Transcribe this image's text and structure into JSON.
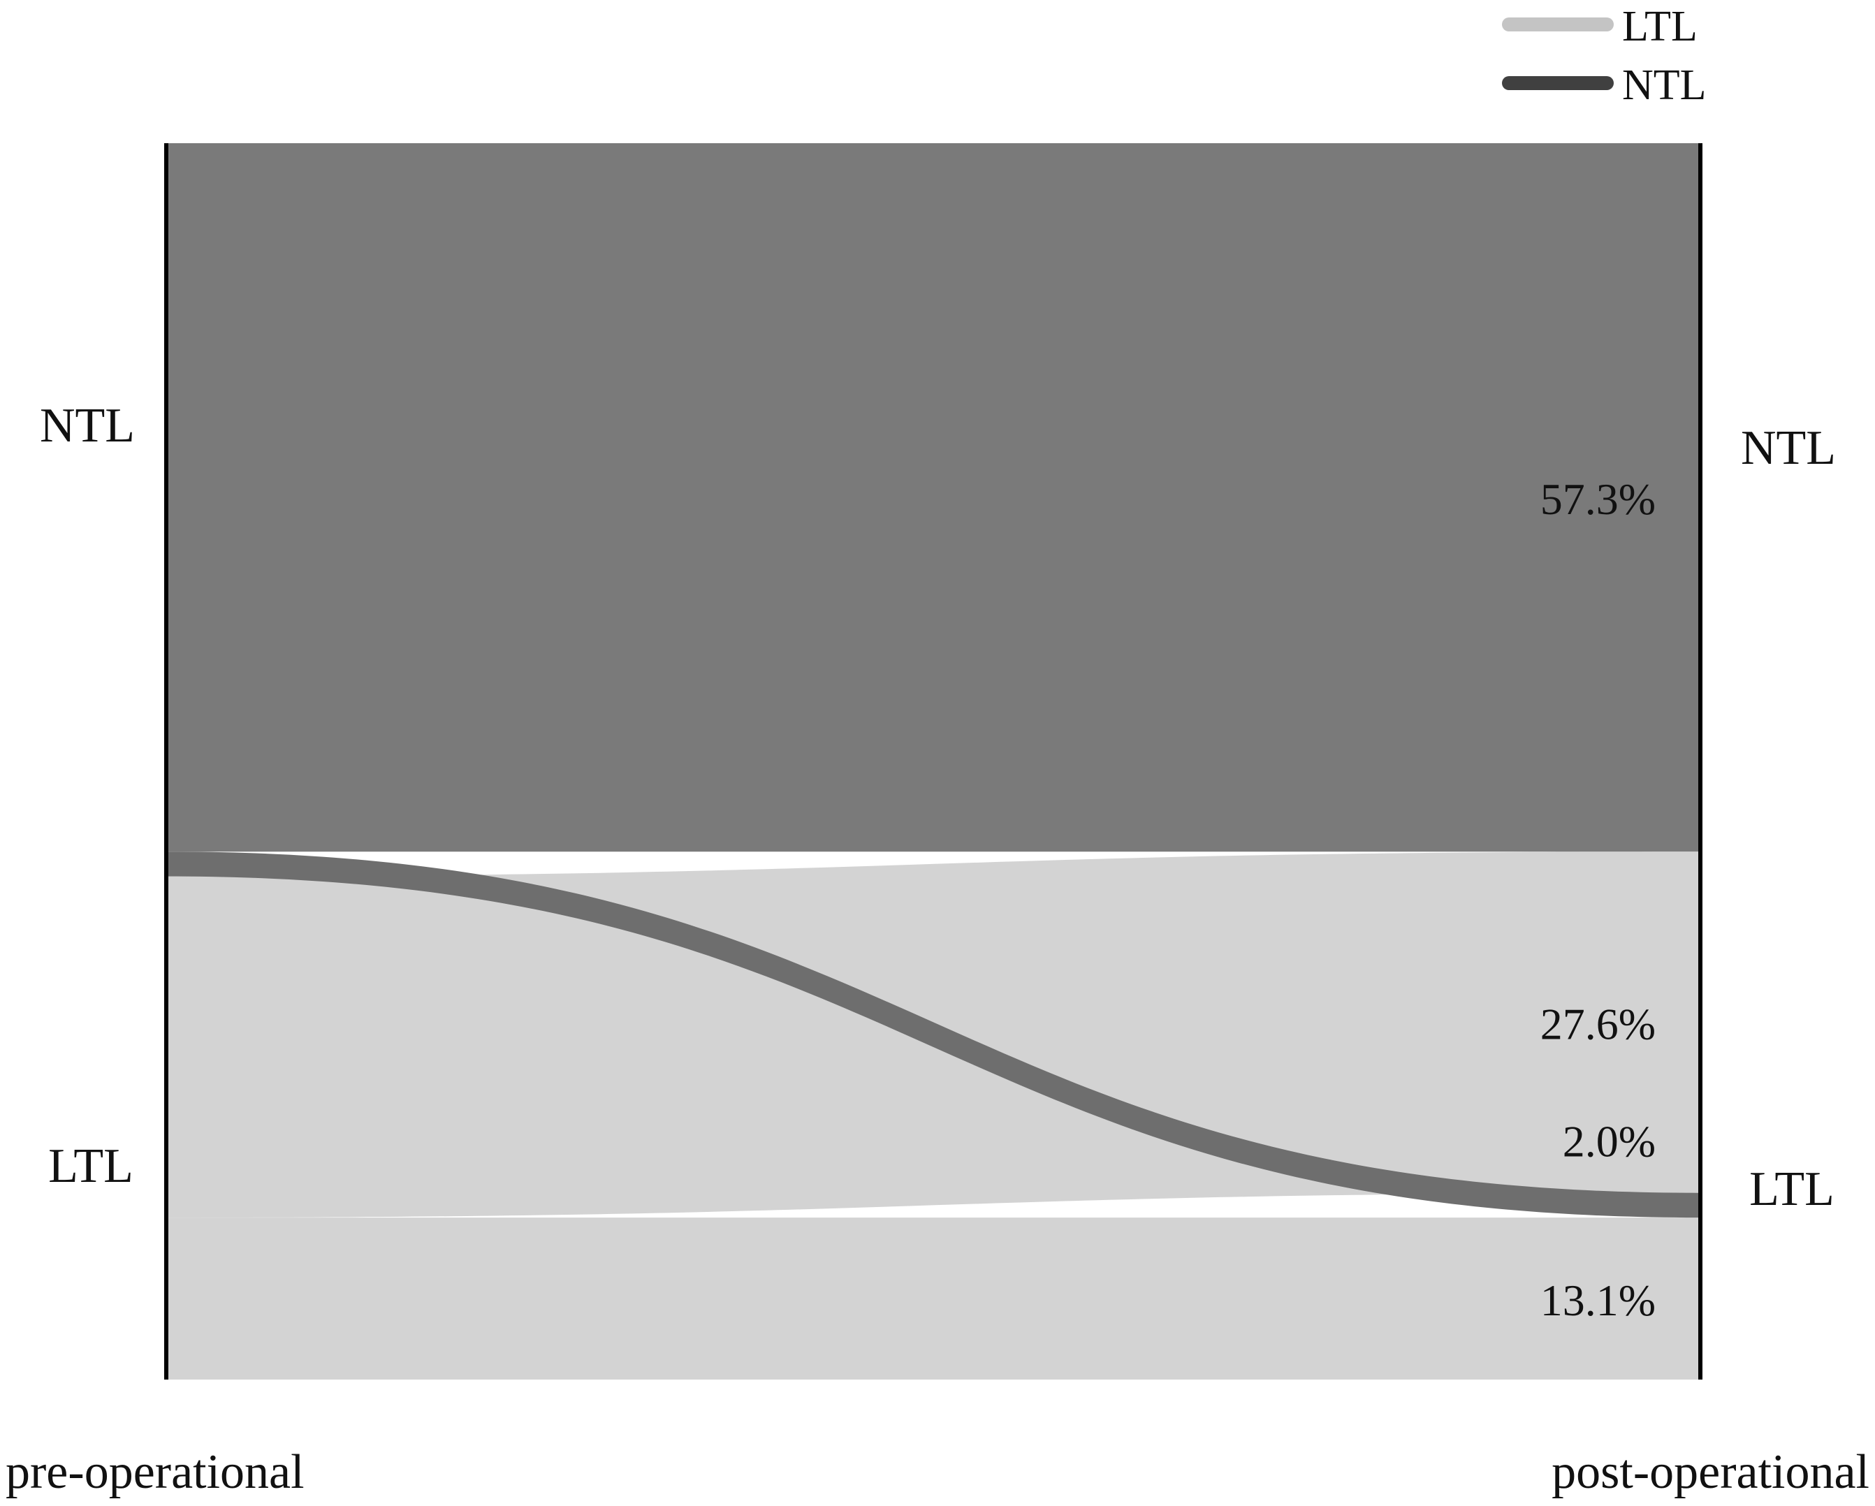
{
  "legend": {
    "placement": "top-right",
    "items": [
      {
        "label": "LTL",
        "color": "#c4c4c4"
      },
      {
        "label": "NTL",
        "color": "#404040"
      }
    ]
  },
  "axes": {
    "left_title": "pre-operational",
    "right_title": "post-operational"
  },
  "nodes": {
    "left": [
      "NTL",
      "LTL"
    ],
    "right": [
      "NTL",
      "LTL"
    ]
  },
  "chart_data": {
    "type": "sankey",
    "stages": [
      "pre-operational",
      "post-operational"
    ],
    "categories": [
      "NTL",
      "LTL"
    ],
    "flows": [
      {
        "from": "NTL",
        "to": "NTL",
        "value": 57.3,
        "label": "57.3%",
        "color": "#7a7a7a"
      },
      {
        "from": "LTL",
        "to": "NTL",
        "value": 27.6,
        "label": "27.6%",
        "color": "#d3d3d3"
      },
      {
        "from": "NTL",
        "to": "LTL",
        "value": 2.0,
        "label": "2.0%",
        "color": "#6e6e6e"
      },
      {
        "from": "LTL",
        "to": "LTL",
        "value": 13.1,
        "label": "13.1%",
        "color": "#d3d3d3"
      }
    ],
    "grid": false,
    "legend_position": "top-right"
  }
}
